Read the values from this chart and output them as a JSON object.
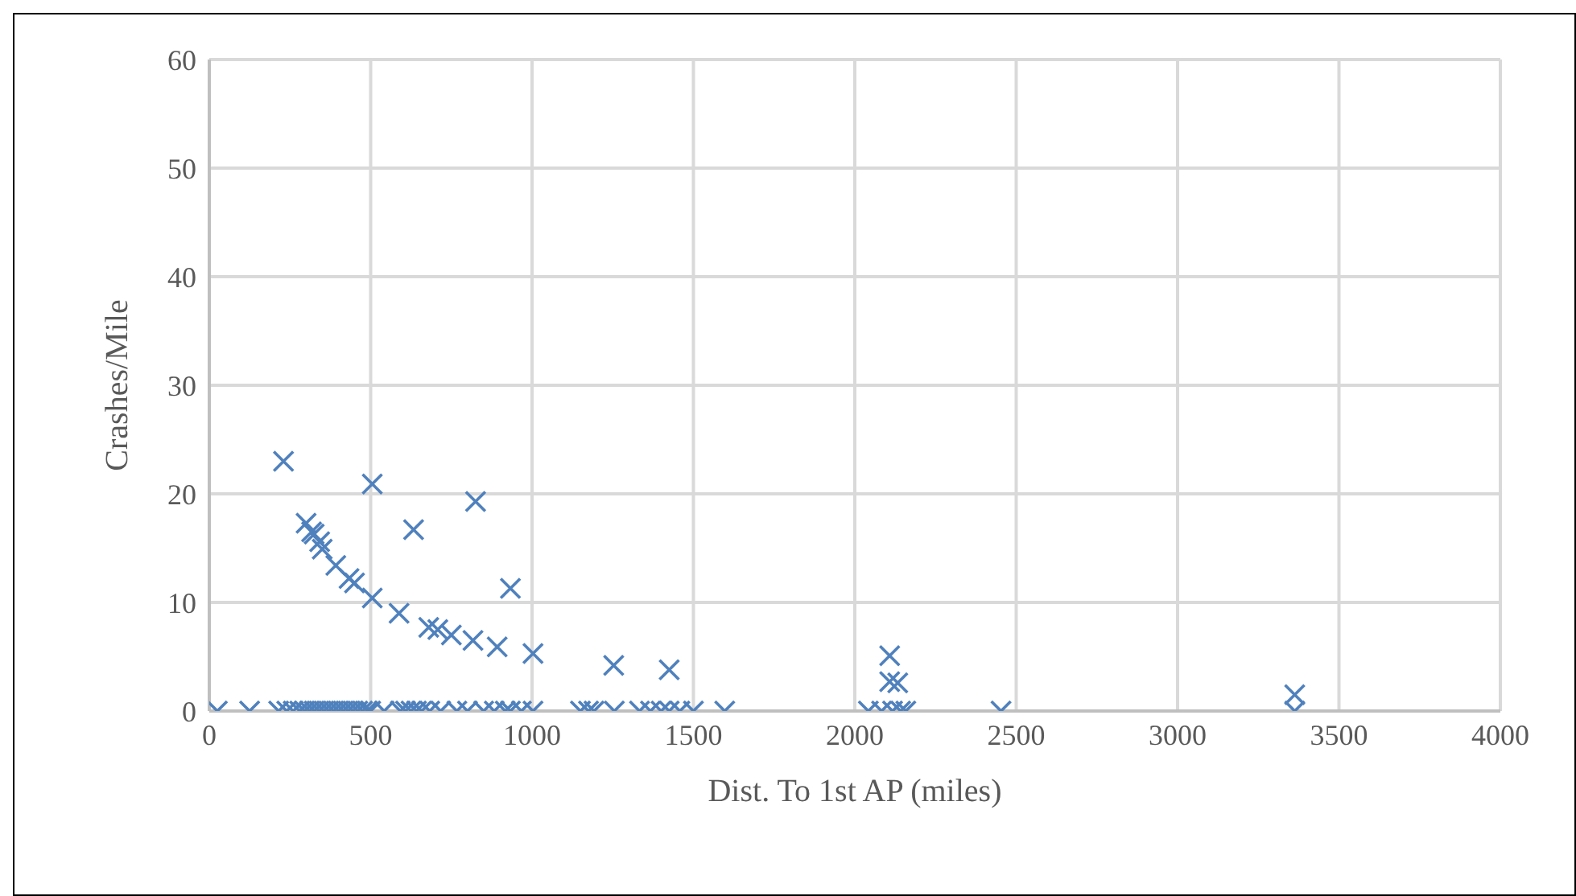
{
  "chart_data": {
    "type": "scatter",
    "xlabel": "Dist. To 1st AP (miles)",
    "ylabel": "Crashes/Mile",
    "marker": "cross",
    "grid": true,
    "xlim": [
      0,
      4000
    ],
    "xticks": [
      0,
      500,
      1000,
      1500,
      2000,
      2500,
      3000,
      3500,
      4000
    ],
    "ylim": [
      0,
      60
    ],
    "yticks": [
      0,
      10,
      20,
      30,
      40,
      50,
      60
    ],
    "series": [
      {
        "color": "#4f81bd",
        "x": [
          230,
          505,
          825,
          633,
          933,
          300,
          317,
          325,
          342,
          350,
          392,
          433,
          450,
          505,
          588,
          680,
          708,
          750,
          817,
          892,
          1003,
          1253,
          1425,
          2108,
          2108,
          2133,
          3363,
          25,
          125,
          215,
          240,
          260,
          280,
          295,
          310,
          325,
          340,
          355,
          370,
          385,
          400,
          415,
          430,
          445,
          460,
          475,
          490,
          500,
          542,
          592,
          608,
          625,
          642,
          658,
          683,
          717,
          767,
          800,
          850,
          883,
          917,
          933,
          967,
          1003,
          1150,
          1175,
          1192,
          1255,
          1333,
          1367,
          1400,
          1425,
          1458,
          1500,
          1597,
          2042,
          2083,
          2117,
          2142,
          2158,
          2453,
          3363
        ],
        "values": [
          23,
          20.9,
          19.3,
          16.7,
          11.3,
          17.3,
          16.5,
          16.3,
          15.6,
          14.9,
          13.4,
          12.2,
          11.8,
          10.4,
          9,
          7.7,
          7.5,
          7,
          6.5,
          5.9,
          5.3,
          4.2,
          3.8,
          5.1,
          2.7,
          2.6,
          1.5,
          0,
          0,
          0,
          0,
          0,
          0,
          0,
          0,
          0,
          0,
          0,
          0,
          0,
          0,
          0,
          0,
          0,
          0,
          0,
          0,
          0,
          0,
          0,
          0,
          0,
          0,
          0,
          0,
          0,
          0,
          0,
          0,
          0,
          0,
          0,
          0,
          0,
          0,
          0,
          0,
          0,
          0,
          0,
          0,
          0,
          0,
          0,
          0,
          0,
          0,
          0,
          0,
          0,
          0,
          0
        ]
      }
    ]
  }
}
